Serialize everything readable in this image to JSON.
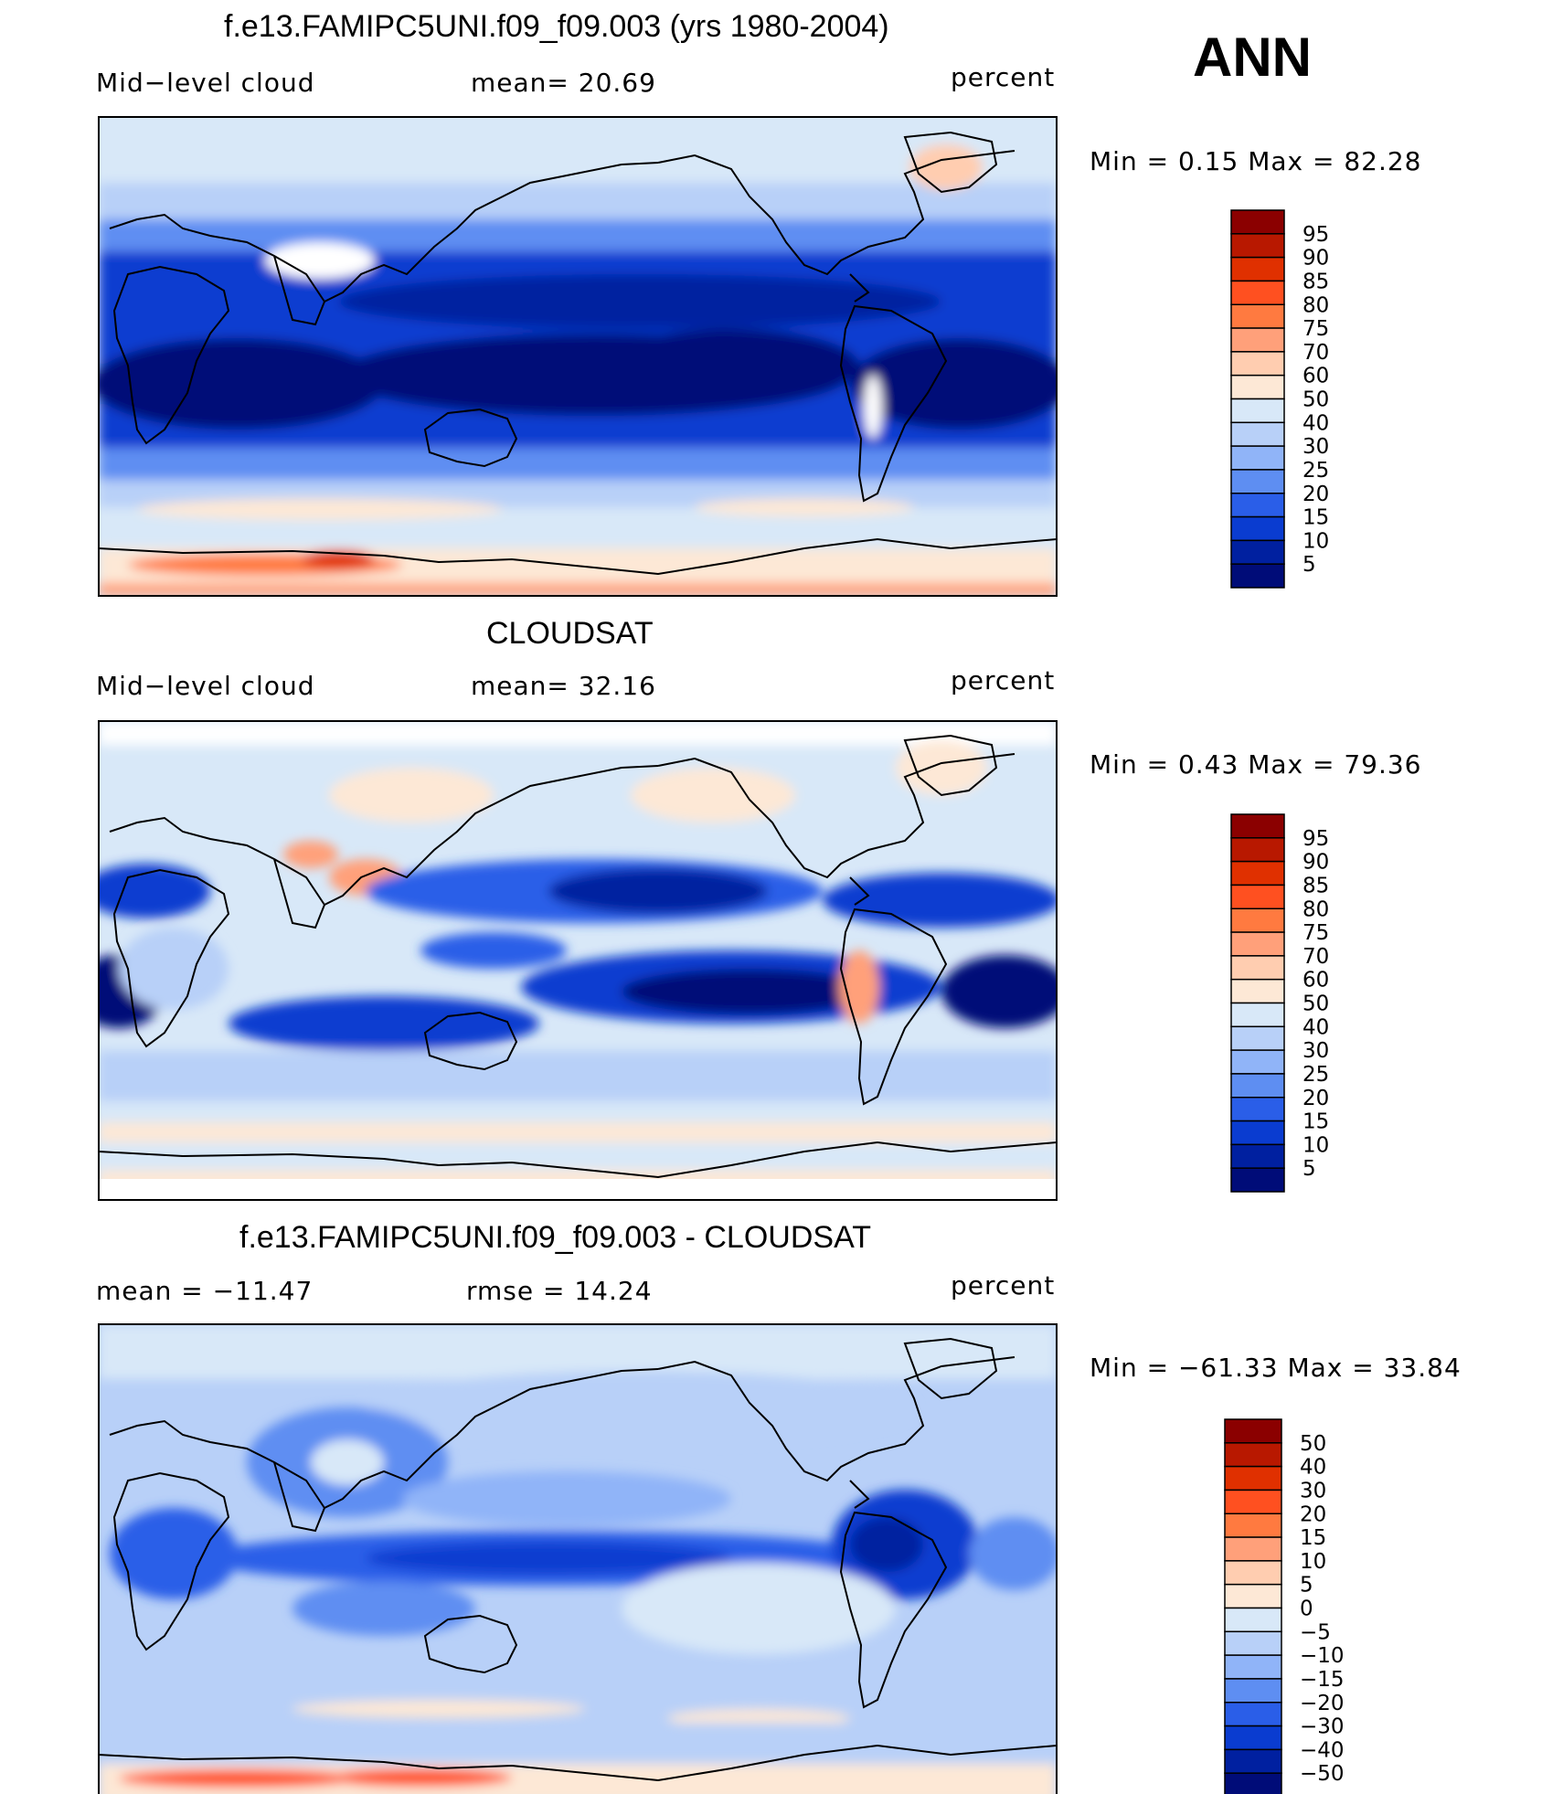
{
  "season": "ANN",
  "colors": {
    "ocean_deep": "#0a1f8a",
    "land_line": "#000000",
    "frame": "#000000"
  },
  "panels": [
    {
      "id": "model",
      "title": "f.e13.FAMIPC5UNI.f09_f09.003 (yrs 1980-2004)",
      "left_label": "Mid−level cloud",
      "center_label": "mean=   20.69",
      "right_label": "percent",
      "minmax": "Min  =     0.15  Max  =    82.28",
      "colorbar_labels": [
        "95",
        "90",
        "85",
        "80",
        "75",
        "70",
        "60",
        "50",
        "40",
        "30",
        "25",
        "20",
        "15",
        "10",
        "5"
      ],
      "colorbar_colors": [
        "#8b0000",
        "#b81800",
        "#e03000",
        "#ff5020",
        "#ff7a40",
        "#ffa07a",
        "#ffcdb0",
        "#fde8d6",
        "#d8e8f8",
        "#b8d0f8",
        "#90b4f8",
        "#5e8ef2",
        "#2a5ee8",
        "#0a3cd0",
        "#0020a0",
        "#000c78"
      ]
    },
    {
      "id": "obs",
      "title": "CLOUDSAT",
      "left_label": "Mid−level cloud",
      "center_label": "mean=   32.16",
      "right_label": "percent",
      "minmax": "Min  =     0.43  Max  =    79.36",
      "colorbar_labels": [
        "95",
        "90",
        "85",
        "80",
        "75",
        "70",
        "60",
        "50",
        "40",
        "30",
        "25",
        "20",
        "15",
        "10",
        "5"
      ],
      "colorbar_colors": [
        "#8b0000",
        "#b81800",
        "#e03000",
        "#ff5020",
        "#ff7a40",
        "#ffa07a",
        "#ffcdb0",
        "#fde8d6",
        "#d8e8f8",
        "#b8d0f8",
        "#90b4f8",
        "#5e8ef2",
        "#2a5ee8",
        "#0a3cd0",
        "#0020a0",
        "#000c78"
      ]
    },
    {
      "id": "diff",
      "title": "f.e13.FAMIPC5UNI.f09_f09.003 - CLOUDSAT",
      "left_label": "mean  =  −11.47",
      "center_label": "rmse  =    14.24",
      "right_label": "percent",
      "minmax": "Min  =  −61.33  Max  =    33.84",
      "colorbar_labels": [
        "50",
        "40",
        "30",
        "20",
        "15",
        "10",
        "5",
        "0",
        "−5",
        "−10",
        "−15",
        "−20",
        "−30",
        "−40",
        "−50"
      ],
      "colorbar_colors": [
        "#8b0000",
        "#b81800",
        "#e03000",
        "#ff5020",
        "#ff7a40",
        "#ffa07a",
        "#ffcdb0",
        "#fde8d6",
        "#d8e8f8",
        "#b8d0f8",
        "#90b4f8",
        "#5e8ef2",
        "#2a5ee8",
        "#0a3cd0",
        "#0020a0",
        "#000c78"
      ]
    }
  ],
  "chart_data": [
    {
      "type": "heatmap",
      "title": "f.e13.FAMIPC5UNI.f09_f09.003 (yrs 1980-2004)",
      "variable": "Mid-level cloud",
      "units": "percent",
      "mean": 20.69,
      "min": 0.15,
      "max": 82.28,
      "levels": [
        5,
        10,
        15,
        20,
        25,
        30,
        40,
        50,
        60,
        70,
        75,
        80,
        85,
        90,
        95
      ]
    },
    {
      "type": "heatmap",
      "title": "CLOUDSAT",
      "variable": "Mid-level cloud",
      "units": "percent",
      "mean": 32.16,
      "min": 0.43,
      "max": 79.36,
      "levels": [
        5,
        10,
        15,
        20,
        25,
        30,
        40,
        50,
        60,
        70,
        75,
        80,
        85,
        90,
        95
      ]
    },
    {
      "type": "heatmap",
      "title": "f.e13.FAMIPC5UNI.f09_f09.003 - CLOUDSAT",
      "units": "percent",
      "mean": -11.47,
      "rmse": 14.24,
      "min": -61.33,
      "max": 33.84,
      "levels": [
        -50,
        -40,
        -30,
        -20,
        -15,
        -10,
        -5,
        0,
        5,
        10,
        15,
        20,
        30,
        40,
        50
      ]
    }
  ]
}
